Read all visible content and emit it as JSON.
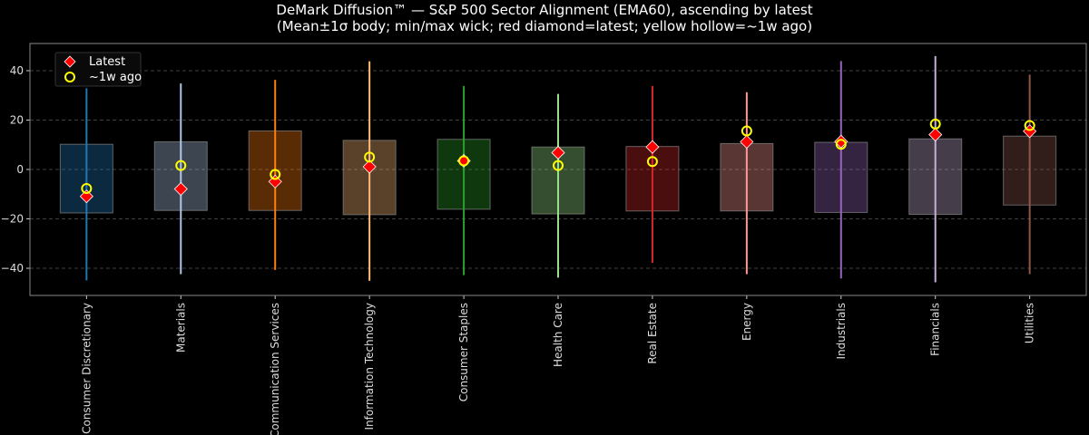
{
  "chart_data": {
    "type": "candlestick-range",
    "title_line1": "DeMark Diffusion™ — S&P 500 Sector Alignment (EMA60), ascending by latest",
    "title_line2": "(Mean±1σ body; min/max wick; red diamond=latest; yellow hollow=~1w ago)",
    "xlabel": "",
    "ylabel": "",
    "ylim": [
      -51,
      51
    ],
    "yticks": [
      -40,
      -20,
      0,
      20,
      40
    ],
    "grid": true,
    "legend_position": "top-left",
    "legend": [
      {
        "label": "Latest",
        "marker": "red diamond"
      },
      {
        "label": "~1w ago",
        "marker": "yellow hollow circle"
      }
    ],
    "marker_colors": {
      "latest": "#ff0000",
      "week_ago": "#ffff00"
    },
    "categories": [
      "Consumer Discretionary",
      "Materials",
      "Communication Services",
      "Information Technology",
      "Consumer Staples",
      "Health Care",
      "Real Estate",
      "Energy",
      "Industrials",
      "Financials",
      "Utilities"
    ],
    "colors": [
      "#1f77b4",
      "#aec7e8",
      "#ff7f0e",
      "#ffbb78",
      "#2ca02c",
      "#98df8a",
      "#d62728",
      "#ff9896",
      "#9467bd",
      "#c5b0d5",
      "#8c564b"
    ],
    "body_high": [
      10.2,
      11.2,
      15.6,
      11.8,
      12.2,
      9.1,
      9.3,
      10.5,
      11.0,
      12.4,
      13.5
    ],
    "body_low": [
      -17.6,
      -16.6,
      -16.6,
      -18.3,
      -16.1,
      -18.0,
      -16.8,
      -16.8,
      -17.4,
      -18.2,
      -14.4
    ],
    "max": [
      32.9,
      34.8,
      36.3,
      43.8,
      33.8,
      30.6,
      33.8,
      31.3,
      43.9,
      45.9,
      38.4
    ],
    "min": [
      -44.9,
      -42.4,
      -40.7,
      -45.1,
      -42.8,
      -43.8,
      -37.8,
      -42.4,
      -44.1,
      -45.7,
      -42.4
    ],
    "latest": [
      -10.9,
      -7.9,
      -4.9,
      1.1,
      3.5,
      6.8,
      9.1,
      11.2,
      11.3,
      14.1,
      15.5
    ],
    "week_ago": [
      -7.7,
      1.6,
      -2.0,
      5.0,
      3.5,
      1.6,
      3.2,
      15.6,
      10.2,
      18.4,
      17.8
    ]
  }
}
